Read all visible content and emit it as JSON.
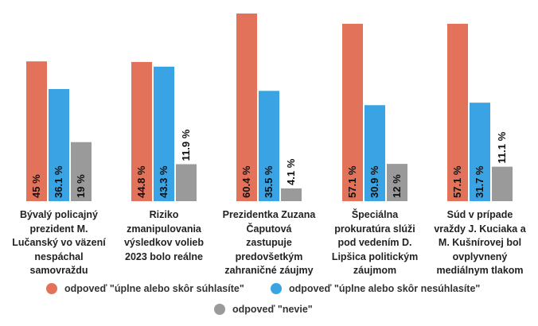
{
  "chart_data": {
    "type": "bar",
    "categories": [
      "Bývalý policajný prezident M. Lučanský vo väzení nespáchal samovraždu",
      "Riziko zmanipulovania výsledkov volieb 2023 bolo reálne",
      "Prezidentka Zuzana Čaputová zastupuje predovšetkým zahraničné záujmy",
      "Špeciálna prokuratúra slúži pod vedením D. Lipšica politickým záujmom",
      "Súd v prípade vraždy J. Kuciaka a M. Kušnírovej bol ovplyvnený mediálnym tlakom"
    ],
    "series": [
      {
        "name": "odpoveď \"úplne alebo skôr súhlasíte\"",
        "color": "#e2735a",
        "values": [
          45,
          44.8,
          60.4,
          57.1,
          57.1
        ],
        "labels": [
          "45 %",
          "44.8 %",
          "60.4 %",
          "57.1 %",
          "57.1 %"
        ]
      },
      {
        "name": "odpoveď \"úplne alebo skôr nesúhlasíte\"",
        "color": "#3aa3e3",
        "values": [
          36.1,
          43.3,
          35.5,
          30.9,
          31.7
        ],
        "labels": [
          "36.1 %",
          "43.3 %",
          "35.5 %",
          "30.9 %",
          "31.7 %"
        ]
      },
      {
        "name": "odpoveď \"nevie\"",
        "color": "#9a9a9a",
        "values": [
          19,
          11.9,
          4.1,
          12,
          11.1
        ],
        "labels": [
          "19 %",
          "11.9 %",
          "4.1 %",
          "12 %",
          "11.1 %"
        ]
      }
    ],
    "ylim": [
      0,
      60.4
    ],
    "grid": false,
    "legend_position": "bottom",
    "label_orientation": "vertical"
  }
}
